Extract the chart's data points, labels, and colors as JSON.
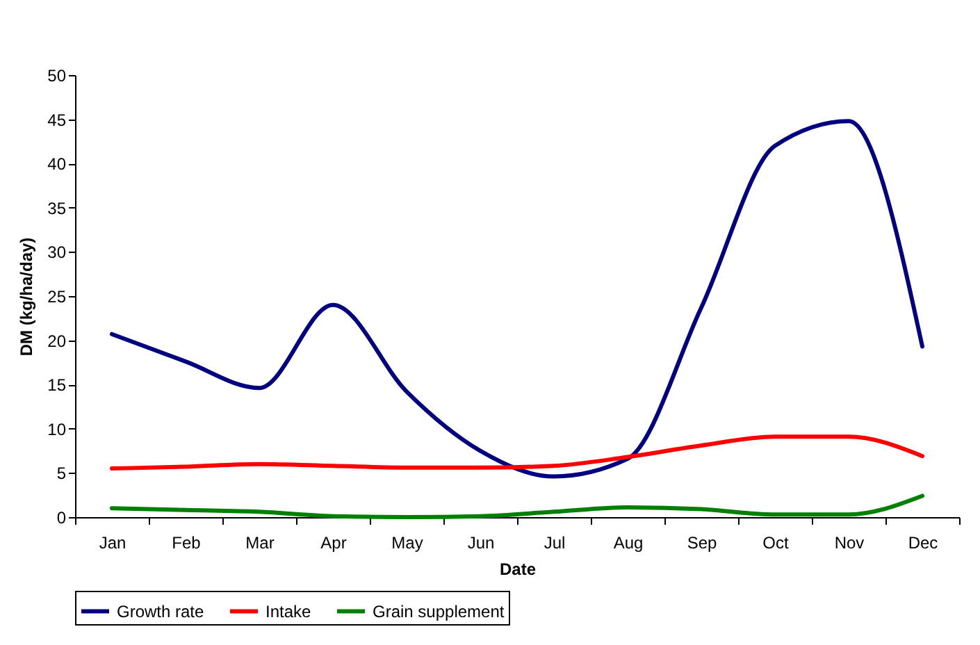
{
  "chart_data": {
    "type": "line",
    "xlabel": "Date",
    "ylabel": "DM (kg/ha/day)",
    "categories": [
      "Jan",
      "Feb",
      "Mar",
      "Apr",
      "May",
      "Jun",
      "Jul",
      "Aug",
      "Sep",
      "Oct",
      "Nov",
      "Dec"
    ],
    "series": [
      {
        "name": "Growth rate",
        "color": "#000080",
        "values": [
          20.7,
          17.6,
          14.6,
          24.0,
          14.2,
          7.5,
          4.6,
          6.6,
          23.7,
          42.0,
          44.8,
          19.3
        ]
      },
      {
        "name": "Intake",
        "color": "#ff0000",
        "values": [
          5.5,
          5.7,
          6.0,
          5.8,
          5.6,
          5.6,
          5.8,
          6.8,
          8.1,
          9.1,
          9.1,
          6.9
        ]
      },
      {
        "name": "Grain supplement",
        "color": "#008000",
        "values": [
          1.0,
          0.8,
          0.6,
          0.1,
          0.0,
          0.1,
          0.6,
          1.1,
          0.9,
          0.3,
          0.3,
          2.4
        ]
      }
    ],
    "ylim": [
      0,
      50
    ],
    "yticks": [
      0,
      5,
      10,
      15,
      20,
      25,
      30,
      35,
      40,
      45,
      50
    ],
    "grid": false,
    "legend": "bottom",
    "marker": "none",
    "line_style": "solid"
  }
}
